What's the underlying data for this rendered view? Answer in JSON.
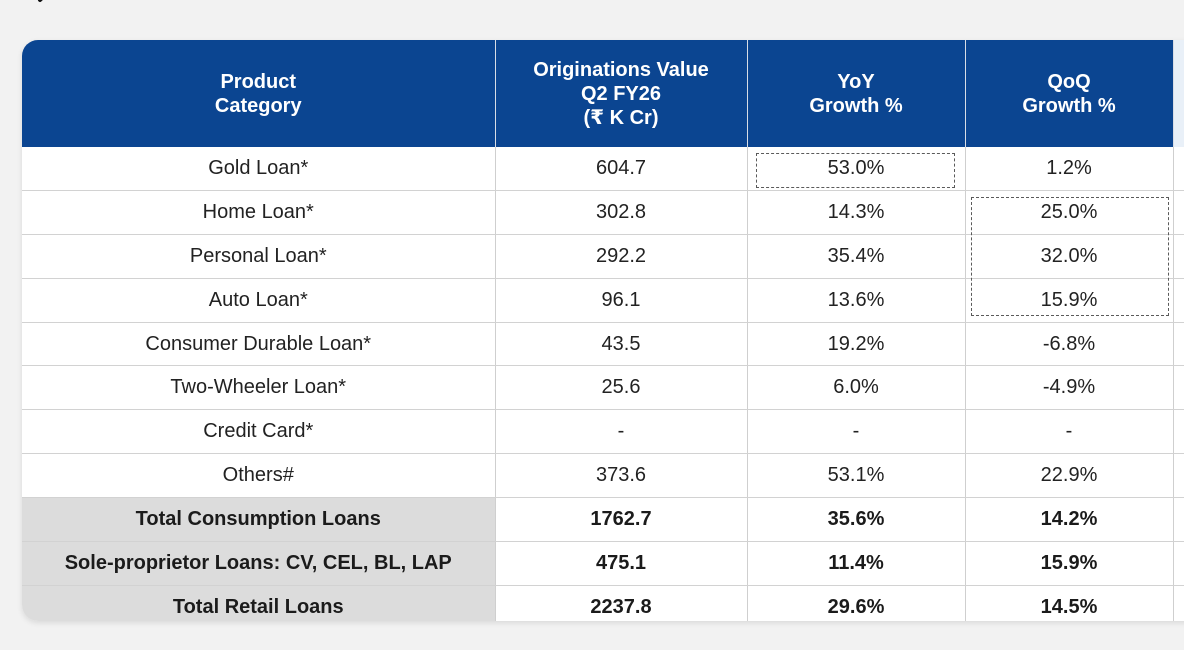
{
  "table": {
    "headers": [
      [
        "Product",
        "Category"
      ],
      [
        "Originations Value",
        "Q2 FY26",
        "(₹ K Cr)"
      ],
      [
        "YoY",
        "Growth %"
      ],
      [
        "QoQ",
        "Growth %"
      ]
    ],
    "rows": [
      [
        "Gold Loan*",
        "604.7",
        "53.0%",
        "1.2%"
      ],
      [
        "Home Loan*",
        "302.8",
        "14.3%",
        "25.0%"
      ],
      [
        "Personal Loan*",
        "292.2",
        "35.4%",
        "32.0%"
      ],
      [
        "Auto Loan*",
        "96.1",
        "13.6%",
        "15.9%"
      ],
      [
        "Consumer Durable Loan*",
        "43.5",
        "19.2%",
        "-6.8%"
      ],
      [
        "Two-Wheeler Loan*",
        "25.6",
        "6.0%",
        "-4.9%"
      ],
      [
        "Credit Card*",
        "-",
        "-",
        "-"
      ],
      [
        "Others#",
        "373.6",
        "53.1%",
        "22.9%"
      ]
    ],
    "totals": [
      [
        "Total Consumption Loans",
        "1762.7",
        "35.6%",
        "14.2%"
      ],
      [
        "Sole-proprietor Loans: CV, CEL, BL, LAP",
        "475.1",
        "11.4%",
        "15.9%"
      ],
      [
        "Total Retail Loans",
        "2237.8",
        "29.6%",
        "14.5%"
      ]
    ]
  },
  "colors": {
    "header_bg": "#0b4591",
    "header_text": "#ffffff",
    "total_label_bg": "#dcdcdc",
    "page_bg": "#f2f2f2"
  }
}
